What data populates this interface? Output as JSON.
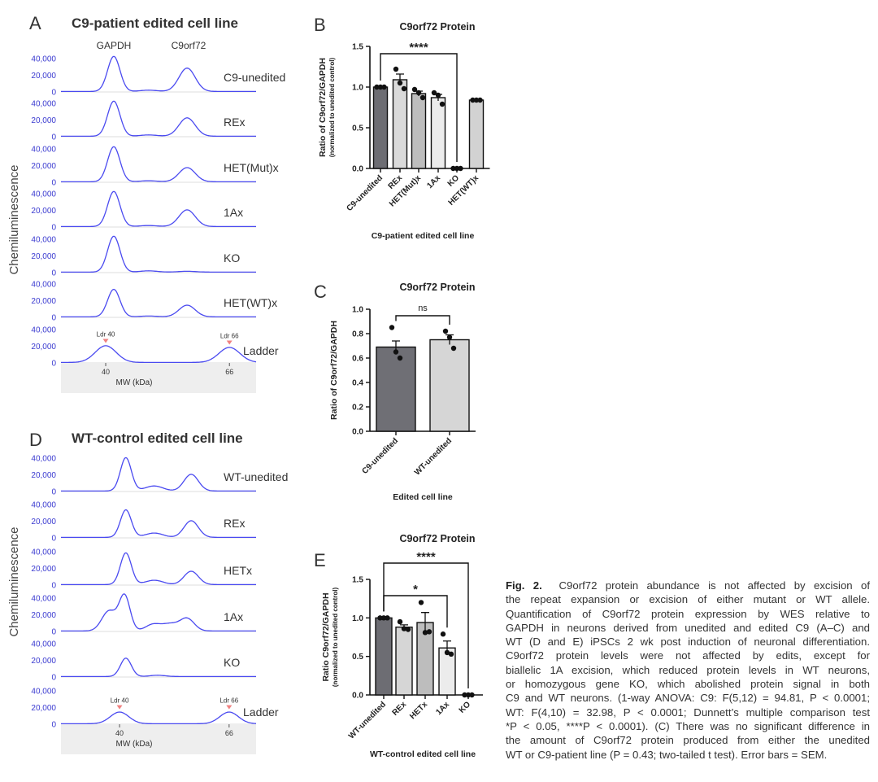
{
  "colors": {
    "trace": "#4a4af0",
    "tick_label": "#3a3ad0",
    "ladder_marker": "#f08080",
    "axis_box": "#eeeeee",
    "bar_dark": "#6d6d73"
  },
  "panel_letters": {
    "A": "A",
    "B": "B",
    "C": "C",
    "D": "D",
    "E": "E"
  },
  "chart_data": [
    {
      "id": "A",
      "type": "line",
      "title": "C9-patient edited cell line",
      "ylabel": "Chemiluminescence",
      "xlabel": "MW (kDa)",
      "xticks": [
        "40",
        "66"
      ],
      "yticks": [
        "0",
        "20,000",
        "40,000"
      ],
      "peak_labels": [
        "GAPDH",
        "C9orf72"
      ],
      "ladder_labels": [
        "Ldr 40",
        "Ldr 66"
      ],
      "traces": [
        {
          "name": "C9-unedited",
          "peaks": [
            {
              "kda": 41.7,
              "height": 42000
            },
            {
              "kda": 57.1,
              "height": 28000
            },
            {
              "kda": 49,
              "height": 1500
            }
          ]
        },
        {
          "name": "REx",
          "peaks": [
            {
              "kda": 41.7,
              "height": 42000
            },
            {
              "kda": 57.1,
              "height": 22000
            },
            {
              "kda": 49,
              "height": 1500
            }
          ]
        },
        {
          "name": "HET(Mut)x",
          "peaks": [
            {
              "kda": 41.7,
              "height": 42000
            },
            {
              "kda": 57.1,
              "height": 17000
            },
            {
              "kda": 49,
              "height": 1200
            }
          ]
        },
        {
          "name": "1Ax",
          "peaks": [
            {
              "kda": 41.7,
              "height": 42000
            },
            {
              "kda": 57.1,
              "height": 20000
            },
            {
              "kda": 49,
              "height": 1200
            }
          ]
        },
        {
          "name": "KO",
          "peaks": [
            {
              "kda": 41.7,
              "height": 43000
            },
            {
              "kda": 49,
              "height": 1500
            },
            {
              "kda": 57.1,
              "height": 1000
            }
          ]
        },
        {
          "name": "HET(WT)x",
          "peaks": [
            {
              "kda": 41.7,
              "height": 33000
            },
            {
              "kda": 57.1,
              "height": 14000
            },
            {
              "kda": 49,
              "height": 1000
            }
          ]
        },
        {
          "name": "Ladder",
          "ladder": true,
          "peaks": [
            {
              "kda": 40,
              "height": 20000
            },
            {
              "kda": 66,
              "height": 18000
            }
          ]
        }
      ]
    },
    {
      "id": "B",
      "type": "bar",
      "title": "C9orf72 Protein",
      "ylabel": "Ratio of C9orf72/GAPDH",
      "ylabel2": "(normalized to unedited control)",
      "xlabel": "C9-patient edited cell line",
      "ylim": [
        0,
        1.5
      ],
      "yticks": [
        "0.0",
        "0.5",
        "1.0",
        "1.5"
      ],
      "categories": [
        "C9-unedited",
        "REx",
        "HET(Mut)x",
        "1Ax",
        "KO",
        "HET(WT)x"
      ],
      "values": [
        1.0,
        1.09,
        0.92,
        0.87,
        0.0,
        0.84
      ],
      "sem": [
        0,
        0.07,
        0.03,
        0.04,
        0,
        0.005
      ],
      "points": [
        [
          1,
          1,
          1
        ],
        [
          1.22,
          1.05,
          0.98
        ],
        [
          0.97,
          0.93,
          0.87
        ],
        [
          0.93,
          0.9,
          0.79
        ],
        [
          0,
          0,
          0
        ],
        [
          0.84,
          0.84,
          0.84
        ]
      ],
      "bar_colors": [
        "#6d6d73",
        "#dadada",
        "#bdbdbd",
        "#ececec",
        "#cfcfcf",
        "#d2d2d2"
      ],
      "significance": [
        {
          "from": 0,
          "to": 4,
          "label": "****"
        }
      ]
    },
    {
      "id": "C",
      "type": "bar",
      "title": "C9orf72 Protein",
      "ylabel": "Ratio of C9orf72/GAPDH",
      "xlabel": "Edited cell line",
      "ylim": [
        0,
        1.0
      ],
      "yticks": [
        "0.0",
        "0.2",
        "0.4",
        "0.6",
        "0.8",
        "1.0"
      ],
      "categories": [
        "C9-unedited",
        "WT-unedited"
      ],
      "values": [
        0.69,
        0.75
      ],
      "sem": [
        0.05,
        0.04
      ],
      "points": [
        [
          0.85,
          0.65,
          0.6
        ],
        [
          0.82,
          0.77,
          0.68
        ]
      ],
      "bar_colors": [
        "#6f6f75",
        "#d6d6d6"
      ],
      "significance": [
        {
          "from": 0,
          "to": 1,
          "label": "ns"
        }
      ]
    },
    {
      "id": "D",
      "type": "line",
      "title": "WT-control edited cell line",
      "ylabel": "Chemiluminescence",
      "xlabel": "MW (kDa)",
      "xticks": [
        "40",
        "66"
      ],
      "yticks": [
        "0",
        "20,000",
        "40,000"
      ],
      "ladder_labels": [
        "Ldr 40",
        "Ldr 66"
      ],
      "traces": [
        {
          "name": "WT-unedited",
          "peaks": [
            {
              "kda": 41.5,
              "height": 40000
            },
            {
              "kda": 57,
              "height": 20000
            },
            {
              "kda": 49,
              "height": 4000
            },
            {
              "kda": 47,
              "height": 3000
            }
          ]
        },
        {
          "name": "REx",
          "peaks": [
            {
              "kda": 41.5,
              "height": 33000
            },
            {
              "kda": 57,
              "height": 20000
            },
            {
              "kda": 49,
              "height": 3500
            },
            {
              "kda": 47,
              "height": 2500
            }
          ]
        },
        {
          "name": "HETx",
          "peaks": [
            {
              "kda": 41.5,
              "height": 38000
            },
            {
              "kda": 57,
              "height": 16000
            },
            {
              "kda": 49,
              "height": 3500
            },
            {
              "kda": 47,
              "height": 2500
            }
          ]
        },
        {
          "name": "1Ax",
          "peaks": [
            {
              "kda": 41.2,
              "height": 42000
            },
            {
              "kda": 37.5,
              "height": 24000
            },
            {
              "kda": 48,
              "height": 8000
            },
            {
              "kda": 56,
              "height": 15000
            },
            {
              "kda": 52,
              "height": 8000
            }
          ]
        },
        {
          "name": "KO",
          "peaks": [
            {
              "kda": 41.5,
              "height": 22000
            },
            {
              "kda": 49,
              "height": 1500
            }
          ]
        },
        {
          "name": "Ladder",
          "ladder": true,
          "peaks": [
            {
              "kda": 40,
              "height": 14000
            },
            {
              "kda": 66,
              "height": 14000
            }
          ]
        }
      ]
    },
    {
      "id": "E",
      "type": "bar",
      "title": "C9orf72 Protein",
      "ylabel": "Ratio C9orf72/GAPDH",
      "ylabel2": "(normalized to unedited control)",
      "xlabel": "WT-control edited cell line",
      "ylim": [
        0,
        1.5
      ],
      "yticks": [
        "0.0",
        "0.5",
        "1.0",
        "1.5"
      ],
      "categories": [
        "WT-unedited",
        "REx",
        "HETx",
        "1Ax",
        "KO"
      ],
      "values": [
        1.0,
        0.88,
        0.94,
        0.61,
        0.0
      ],
      "sem": [
        0,
        0.03,
        0.13,
        0.09,
        0
      ],
      "points": [
        [
          1,
          1,
          1
        ],
        [
          0.95,
          0.86,
          0.85
        ],
        [
          1.2,
          0.81,
          0.82
        ],
        [
          0.79,
          0.55,
          0.53
        ],
        [
          0,
          0,
          0
        ]
      ],
      "bar_colors": [
        "#6d6d73",
        "#d6d6d6",
        "#bdbdbd",
        "#ececec",
        "#d6d6d6"
      ],
      "significance": [
        {
          "from": 0,
          "to": 4,
          "label": "****"
        },
        {
          "from": 0,
          "to": 3,
          "label": "*"
        }
      ]
    }
  ],
  "caption": {
    "label": "Fig. 2.",
    "lines": [
      "C9orf72 protein abundance is not affected by excision of",
      "the repeat expansion or excision of either mutant or WT allele.",
      "Quantification of C9orf72 protein expression by WES relative to",
      "GAPDH in neurons derived from unedited and edited C9 (A–C) and",
      "WT (D and E) iPSCs 2 wk post induction of neuronal differentiation.",
      "C9orf72 protein levels were not affected by edits, except for",
      "biallelic 1A excision, which reduced protein levels in WT neurons,",
      "or homozygous gene KO, which abolished protein signal in both",
      "C9 and WT neurons. (1-way ANOVA: C9: F(5,12) = 94.81, P < 0.0001;",
      "WT: F(4,10) = 32.98, P < 0.0001; Dunnett’s multiple comparison test",
      "*P < 0.05, ****P < 0.0001). (C) There was no significant difference in",
      "the amount of C9orf72 protein produced from either the unedited",
      "WT or C9-patient line (P = 0.43; two-tailed t test). Error bars = SEM."
    ]
  }
}
